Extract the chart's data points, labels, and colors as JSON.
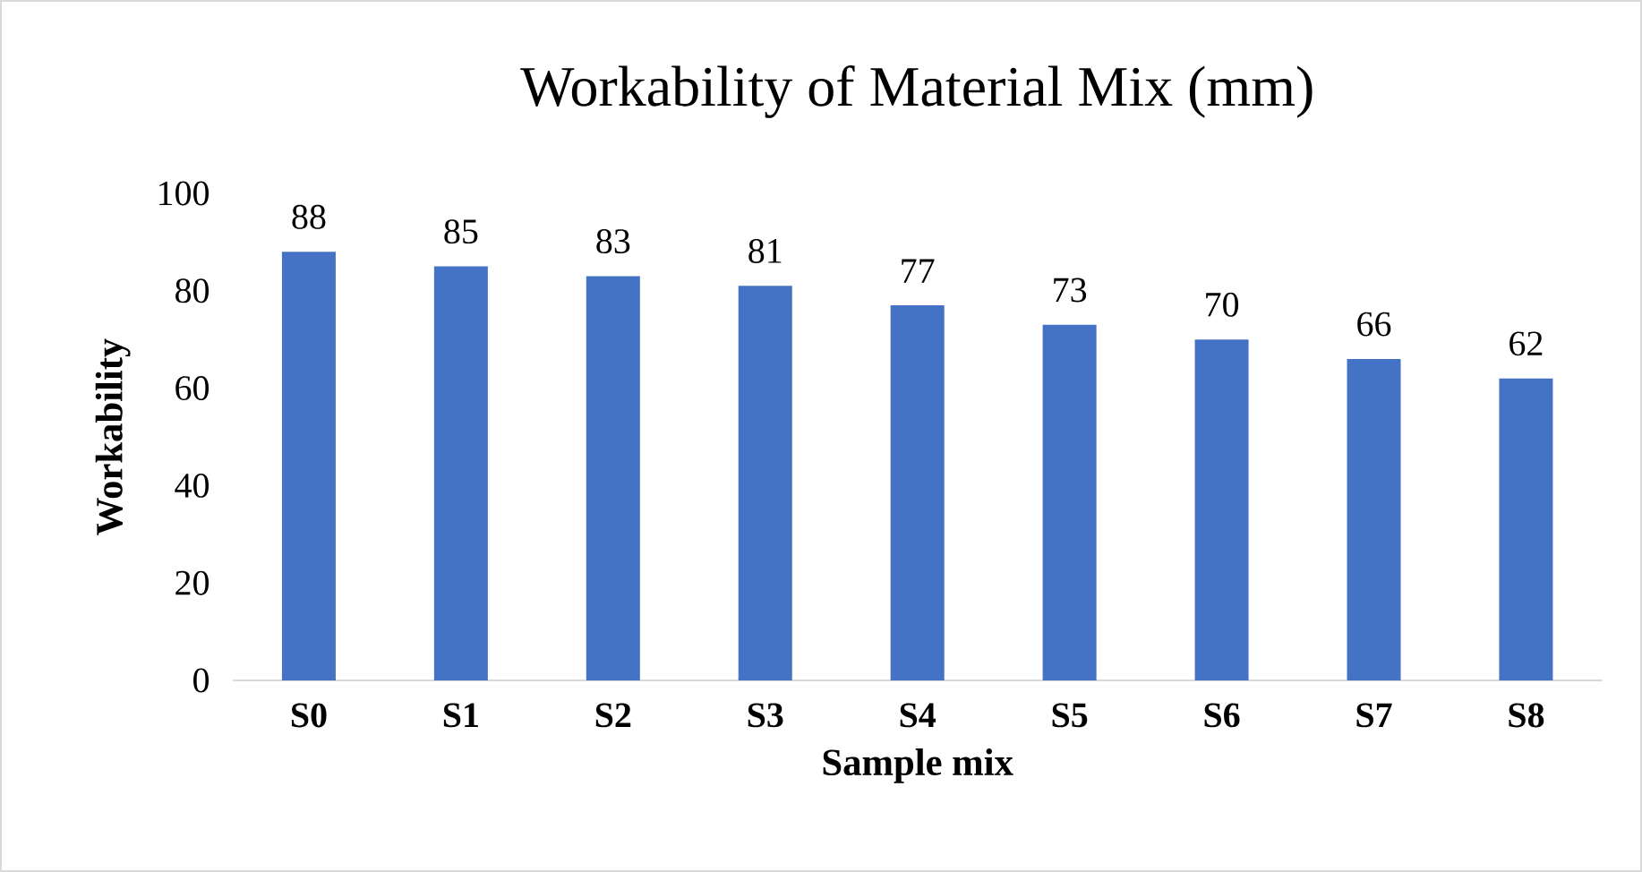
{
  "chart_data": {
    "type": "bar",
    "title": "Workability of Material Mix (mm)",
    "xlabel": "Sample mix",
    "ylabel": "Workability",
    "categories": [
      "S0",
      "S1",
      "S2",
      "S3",
      "S4",
      "S5",
      "S6",
      "S7",
      "S8"
    ],
    "values": [
      88,
      85,
      83,
      81,
      77,
      73,
      70,
      66,
      62
    ],
    "color": "#4472c4",
    "ylim": [
      0,
      100
    ],
    "yticks": [
      0,
      20,
      40,
      60,
      80,
      100
    ],
    "data_labels": true
  }
}
